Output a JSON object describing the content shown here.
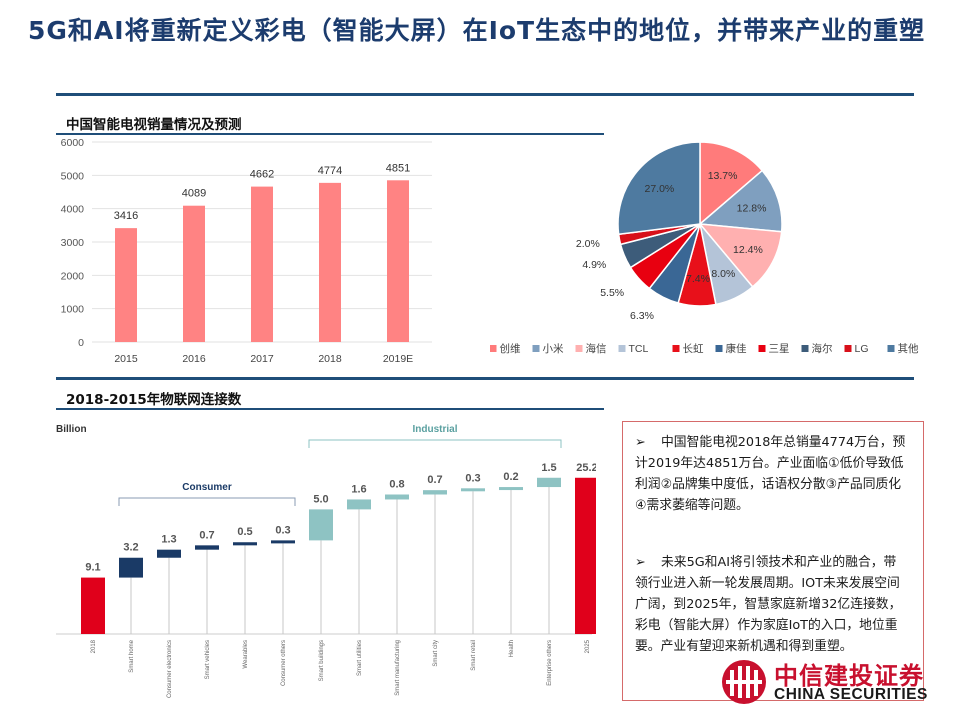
{
  "page": {
    "title": "5G和AI将重新定义彩电（智能大屏）在IoT生态中的地位，并带来产业的重塑"
  },
  "chart1": {
    "section_title": "中国智能电视销量情况及预测",
    "chart_data": {
      "type": "bar",
      "categories": [
        "2015",
        "2016",
        "2017",
        "2018",
        "2019E"
      ],
      "values": [
        3416,
        4089,
        4662,
        4774,
        4851
      ],
      "data_labels": [
        "3416",
        "4089",
        "4662",
        "4774",
        "4851"
      ],
      "yticks": [
        "0",
        "1000",
        "2000",
        "3000",
        "4000",
        "5000",
        "6000"
      ],
      "ylim": [
        0,
        6000
      ],
      "grid": true,
      "color": "#ff8383"
    }
  },
  "chart2": {
    "chart_data": {
      "type": "pie",
      "slices": [
        {
          "name": "创维",
          "value": 13.7,
          "label": "13.7%",
          "color": "#ff7b7b"
        },
        {
          "name": "小米",
          "value": 12.8,
          "label": "12.8%",
          "color": "#7f9fbf"
        },
        {
          "name": "海信",
          "value": 12.4,
          "label": "12.4%",
          "color": "#ffb0b0"
        },
        {
          "name": "TCL",
          "value": 8.0,
          "label": "8.0%",
          "color": "#b4c4d8"
        },
        {
          "name": "长虹",
          "value": 7.4,
          "label": "7.4%",
          "color": "#e8101a"
        },
        {
          "name": "康佳",
          "value": 6.3,
          "label": "6.3%",
          "color": "#3a6795"
        },
        {
          "name": "三星",
          "value": 5.5,
          "label": "5.5%",
          "color": "#e80010"
        },
        {
          "name": "海尔",
          "value": 4.9,
          "label": "4.9%",
          "color": "#3d5c7a"
        },
        {
          "name": "LG",
          "value": 2.0,
          "label": "2.0%",
          "color": "#d8101a"
        },
        {
          "name": "其他",
          "value": 27.0,
          "label": "27.0%",
          "color": "#4e7aa0"
        }
      ],
      "legend_position": "bottom"
    }
  },
  "chart3": {
    "section_title": "2018-2015年物联网连接数",
    "chart_data": {
      "type": "bar",
      "unit_label": "Billion",
      "group_labels": {
        "consumer": "Consumer",
        "industrial": "Industrial"
      },
      "categories": [
        "2018",
        "Smart home",
        "Consumer electronics",
        "Smart vehicles",
        "Wearables",
        "Consumer others",
        "Smart buildings",
        "Smart utilities",
        "Smart manufacturing",
        "Smart city",
        "Smart retail",
        "Health",
        "Enterprise others",
        "2025"
      ],
      "values": [
        9.1,
        3.2,
        1.3,
        0.7,
        0.5,
        0.3,
        5.0,
        1.6,
        0.8,
        0.7,
        0.3,
        0.2,
        1.5,
        25.2
      ],
      "data_labels": [
        "9.1",
        "3.2",
        "1.3",
        "0.7",
        "0.5",
        "0.3",
        "5.0",
        "1.6",
        "0.8",
        "0.7",
        "0.3",
        "0.2",
        "1.5",
        "25.2"
      ],
      "kinds": [
        "total",
        "consumer",
        "consumer",
        "consumer",
        "consumer",
        "consumer",
        "industrial",
        "industrial",
        "industrial",
        "industrial",
        "industrial",
        "industrial",
        "industrial",
        "total"
      ],
      "colors": {
        "total": "#e0001b",
        "consumer": "#1a3a66",
        "industrial": "#8ec3c3"
      }
    }
  },
  "textbox": {
    "bullet1": "中国智能电视2018年总销量4774万台，预计2019年达4851万台。产业面临①低价导致低利润②品牌集中度低，话语权分散③产品同质化④需求萎缩等问题。",
    "bullet2": "未来5G和AI将引领技术和产业的融合，带领行业进入新一轮发展周期。IOT未来发展空间广阔，到2025年，智慧家庭新增32亿连接数，彩电（智能大屏）作为家庭IoT的入口，地位重要。产业有望迎来新机遇和得到重塑。",
    "bullet_symbol": "➢"
  },
  "logo": {
    "cn": "中信建投证券",
    "en": "CHINA SECURITIES"
  }
}
